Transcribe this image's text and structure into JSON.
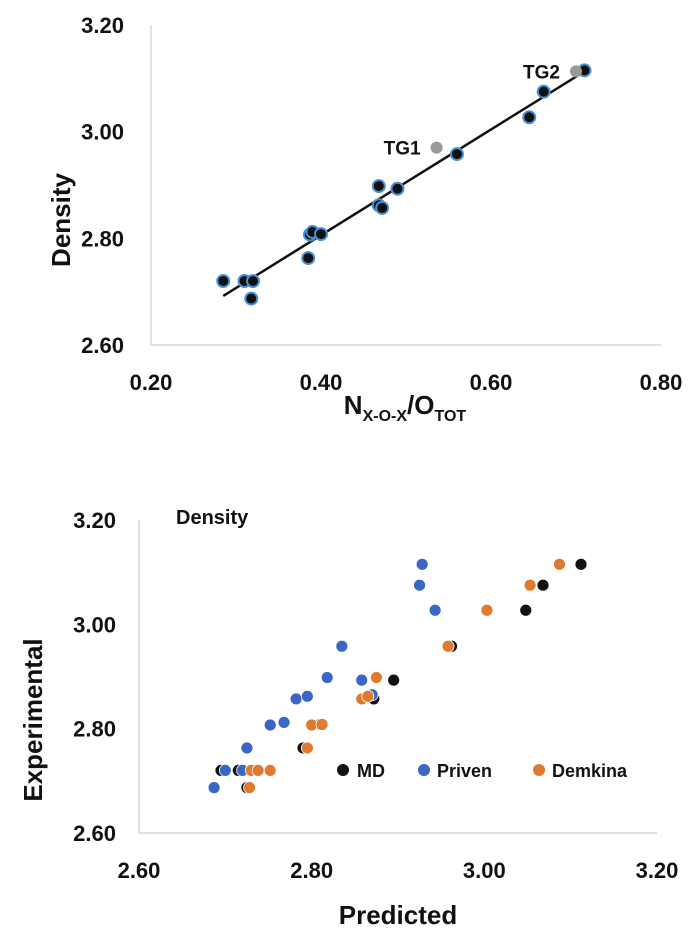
{
  "chart_data": [
    {
      "type": "scatter",
      "title": "",
      "xlabel": {
        "main": "N",
        "sub1": "X-O-X",
        "sep": "/O",
        "sub2": "TOT"
      },
      "ylabel": "Density",
      "xlim": [
        0.2,
        0.8
      ],
      "ylim": [
        2.6,
        3.2
      ],
      "xticks": [
        "0.20",
        "0.40",
        "0.60",
        "0.80"
      ],
      "yticks": [
        "2.60",
        "2.80",
        "3.00",
        "3.20"
      ],
      "grid": false,
      "series": [
        {
          "color": "#111111",
          "edge": "#4a8fd6",
          "points": [
            [
              0.285,
              2.72
            ],
            [
              0.31,
              2.72
            ],
            [
              0.32,
              2.72
            ],
            [
              0.318,
              2.687
            ],
            [
              0.385,
              2.763
            ],
            [
              0.387,
              2.807
            ],
            [
              0.39,
              2.812
            ],
            [
              0.4,
              2.808
            ],
            [
              0.468,
              2.898
            ],
            [
              0.468,
              2.862
            ],
            [
              0.472,
              2.857
            ],
            [
              0.49,
              2.893
            ],
            [
              0.56,
              2.958
            ],
            [
              0.645,
              3.027
            ],
            [
              0.662,
              3.075
            ],
            [
              0.71,
              3.115
            ]
          ]
        },
        {
          "color": "#999999",
          "points": [
            [
              0.536,
              2.97
            ],
            [
              0.7,
              3.113
            ]
          ]
        }
      ],
      "annotations": [
        {
          "text": "TG1",
          "x": 0.536,
          "y": 2.97
        },
        {
          "text": "TG2",
          "x": 0.7,
          "y": 3.113
        }
      ],
      "trendline": {
        "x": [
          0.285,
          0.71
        ],
        "y": [
          2.692,
          3.113
        ]
      }
    },
    {
      "type": "scatter",
      "title": "Density",
      "xlabel": "Predicted",
      "ylabel": "Experimental",
      "xlim": [
        2.6,
        3.2
      ],
      "ylim": [
        2.6,
        3.2
      ],
      "xticks": [
        "2.60",
        "2.80",
        "3.00",
        "3.20"
      ],
      "yticks": [
        "2.60",
        "2.80",
        "3.00",
        "3.20"
      ],
      "grid": false,
      "legend": "bottom-right",
      "series": [
        {
          "name": "MD",
          "color": "#111111",
          "points": [
            [
              2.695,
              2.72
            ],
            [
              2.715,
              2.72
            ],
            [
              2.725,
              2.687
            ],
            [
              2.79,
              2.763
            ],
            [
              2.8,
              2.807
            ],
            [
              2.81,
              2.808
            ],
            [
              2.87,
              2.862
            ],
            [
              2.872,
              2.857
            ],
            [
              2.875,
              2.898
            ],
            [
              2.895,
              2.893
            ],
            [
              2.962,
              2.958
            ],
            [
              3.048,
              3.027
            ],
            [
              3.068,
              3.075
            ],
            [
              3.112,
              3.115
            ]
          ]
        },
        {
          "name": "Priven",
          "color": "#3a66c6",
          "points": [
            [
              2.687,
              2.687
            ],
            [
              2.7,
              2.72
            ],
            [
              2.72,
              2.72
            ],
            [
              2.725,
              2.763
            ],
            [
              2.752,
              2.807
            ],
            [
              2.768,
              2.812
            ],
            [
              2.782,
              2.857
            ],
            [
              2.795,
              2.862
            ],
            [
              2.818,
              2.898
            ],
            [
              2.835,
              2.958
            ],
            [
              2.858,
              2.893
            ],
            [
              2.87,
              2.865
            ],
            [
              2.925,
              3.075
            ],
            [
              2.928,
              3.115
            ],
            [
              2.943,
              3.027
            ]
          ]
        },
        {
          "name": "Demkina",
          "color": "#e07a2e",
          "points": [
            [
              2.728,
              2.687
            ],
            [
              2.73,
              2.72
            ],
            [
              2.738,
              2.72
            ],
            [
              2.752,
              2.72
            ],
            [
              2.795,
              2.763
            ],
            [
              2.8,
              2.807
            ],
            [
              2.812,
              2.808
            ],
            [
              2.858,
              2.857
            ],
            [
              2.865,
              2.862
            ],
            [
              2.875,
              2.898
            ],
            [
              2.958,
              2.958
            ],
            [
              3.003,
              3.027
            ],
            [
              3.053,
              3.075
            ],
            [
              3.087,
              3.115
            ]
          ]
        }
      ]
    }
  ]
}
